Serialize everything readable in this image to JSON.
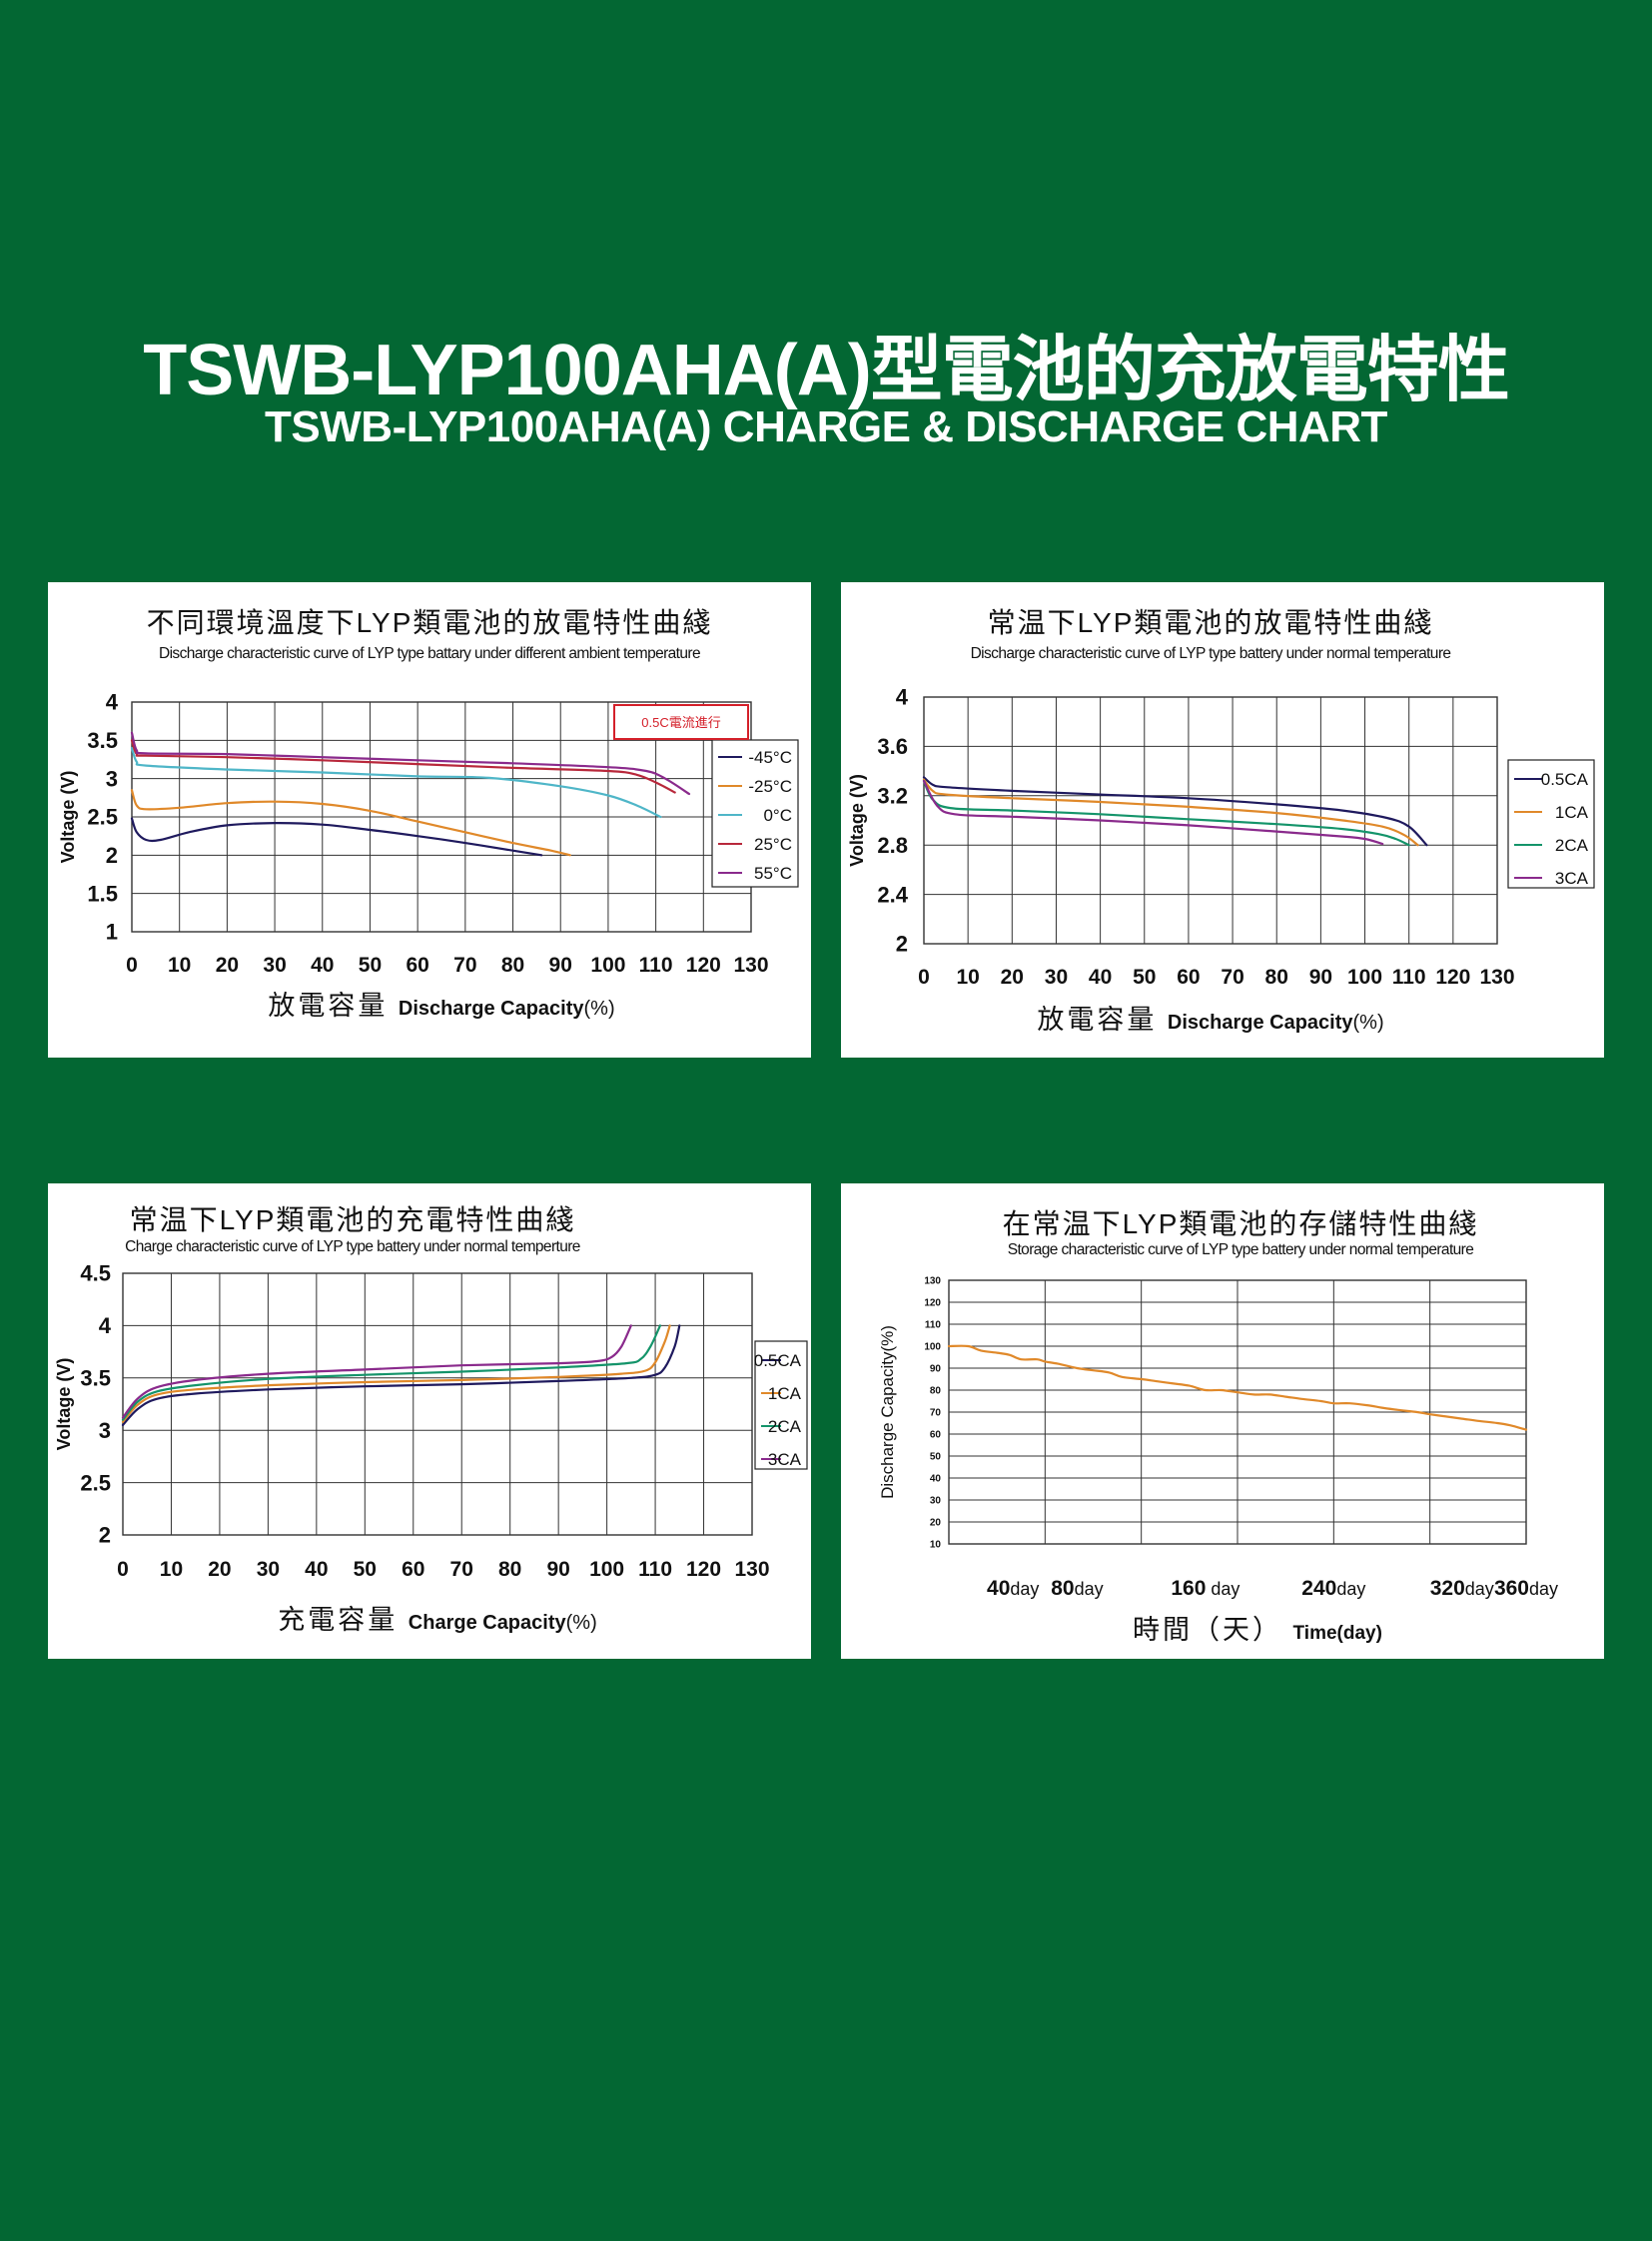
{
  "header": {
    "title": "TSWB-LYP100AHA(A)型電池的充放電特性",
    "subtitle": "TSWB-LYP100AHA(A) CHARGE & DISCHARGE CHART"
  },
  "colors": {
    "background": "#036733",
    "navy": "#1f1a5e",
    "orange": "#e0892a",
    "cyan": "#4fb6c8",
    "green": "#14946a",
    "red": "#b8283b",
    "purple": "#8a2a8c",
    "grid": "#333333",
    "note_red": "#d4202a"
  },
  "chart_data": [
    {
      "id": "temp-discharge",
      "type": "line",
      "title": "不同環境溫度下LYP類電池的放電特性曲綫",
      "subtitle": "Discharge characteristic curve of LYP type battary under different ambient temperature",
      "xlabel_cn": "放電容量",
      "xlabel_en": "Discharge Capacity",
      "xlabel_unit": "(%)",
      "ylabel": "Voltage (V)",
      "xlim": [
        0,
        130
      ],
      "ylim": [
        1,
        4
      ],
      "xticks": [
        "0",
        "10",
        "20",
        "30",
        "40",
        "50",
        "60",
        "70",
        "80",
        "90",
        "100",
        "110",
        "120",
        "130"
      ],
      "yticks": [
        "1",
        "1.5",
        "2",
        "2.5",
        "3",
        "3.5",
        "4"
      ],
      "note": "0.5C電流進行",
      "legend_position": "right",
      "grid": true,
      "series": [
        {
          "name": "-45°C",
          "color": "#1f1a5e",
          "points": [
            [
              0,
              2.48
            ],
            [
              1,
              2.3
            ],
            [
              3,
              2.2
            ],
            [
              6,
              2.2
            ],
            [
              12,
              2.3
            ],
            [
              20,
              2.39
            ],
            [
              30,
              2.42
            ],
            [
              40,
              2.4
            ],
            [
              50,
              2.33
            ],
            [
              60,
              2.25
            ],
            [
              70,
              2.16
            ],
            [
              80,
              2.06
            ],
            [
              86,
              2.0
            ]
          ]
        },
        {
          "name": "-25°C",
          "color": "#e0892a",
          "points": [
            [
              0,
              2.85
            ],
            [
              1,
              2.65
            ],
            [
              3,
              2.6
            ],
            [
              10,
              2.62
            ],
            [
              20,
              2.68
            ],
            [
              30,
              2.7
            ],
            [
              40,
              2.67
            ],
            [
              50,
              2.58
            ],
            [
              60,
              2.44
            ],
            [
              70,
              2.3
            ],
            [
              80,
              2.16
            ],
            [
              88,
              2.06
            ],
            [
              92,
              2.0
            ]
          ]
        },
        {
          "name": "0°C",
          "color": "#4fb6c8",
          "points": [
            [
              0,
              3.4
            ],
            [
              1,
              3.22
            ],
            [
              3,
              3.17
            ],
            [
              20,
              3.12
            ],
            [
              40,
              3.08
            ],
            [
              60,
              3.03
            ],
            [
              75,
              3.01
            ],
            [
              90,
              2.9
            ],
            [
              100,
              2.78
            ],
            [
              106,
              2.65
            ],
            [
              111,
              2.5
            ]
          ]
        },
        {
          "name": "25°C",
          "color": "#b8283b",
          "points": [
            [
              0,
              3.5
            ],
            [
              1,
              3.32
            ],
            [
              3,
              3.3
            ],
            [
              20,
              3.28
            ],
            [
              40,
              3.24
            ],
            [
              60,
              3.19
            ],
            [
              80,
              3.14
            ],
            [
              100,
              3.1
            ],
            [
              106,
              3.05
            ],
            [
              110,
              2.95
            ],
            [
              114,
              2.82
            ]
          ]
        },
        {
          "name": "55°C",
          "color": "#8a2a8c",
          "points": [
            [
              0,
              3.6
            ],
            [
              1,
              3.37
            ],
            [
              3,
              3.33
            ],
            [
              20,
              3.32
            ],
            [
              40,
              3.28
            ],
            [
              60,
              3.24
            ],
            [
              80,
              3.2
            ],
            [
              100,
              3.15
            ],
            [
              108,
              3.1
            ],
            [
              112,
              3.0
            ],
            [
              117,
              2.8
            ]
          ]
        }
      ]
    },
    {
      "id": "rate-discharge",
      "type": "line",
      "title": "常温下LYP類電池的放電特性曲綫",
      "subtitle": "Discharge characteristic curve of LYP type battery under normal temperature",
      "xlabel_cn": "放電容量",
      "xlabel_en": "Discharge Capacity",
      "xlabel_unit": "(%)",
      "ylabel": "Voltage (V)",
      "xlim": [
        0,
        130
      ],
      "ylim": [
        2,
        4
      ],
      "xticks": [
        "0",
        "10",
        "20",
        "30",
        "40",
        "50",
        "60",
        "70",
        "80",
        "90",
        "100",
        "110",
        "120",
        "130"
      ],
      "yticks": [
        "2",
        "2.4",
        "2.8",
        "3.2",
        "3.6",
        "4"
      ],
      "legend_position": "right",
      "grid": true,
      "series": [
        {
          "name": "0.5CA",
          "color": "#1f1a5e",
          "points": [
            [
              0,
              3.35
            ],
            [
              2,
              3.29
            ],
            [
              5,
              3.27
            ],
            [
              20,
              3.24
            ],
            [
              40,
              3.21
            ],
            [
              60,
              3.18
            ],
            [
              80,
              3.13
            ],
            [
              95,
              3.08
            ],
            [
              105,
              3.02
            ],
            [
              110,
              2.95
            ],
            [
              114,
              2.8
            ]
          ]
        },
        {
          "name": "1CA",
          "color": "#e0892a",
          "points": [
            [
              0,
              3.33
            ],
            [
              2,
              3.24
            ],
            [
              5,
              3.21
            ],
            [
              20,
              3.18
            ],
            [
              40,
              3.15
            ],
            [
              60,
              3.11
            ],
            [
              80,
              3.06
            ],
            [
              95,
              3.0
            ],
            [
              104,
              2.95
            ],
            [
              109,
              2.88
            ],
            [
              112,
              2.8
            ]
          ]
        },
        {
          "name": "2CA",
          "color": "#14946a",
          "points": [
            [
              0,
              3.32
            ],
            [
              2,
              3.17
            ],
            [
              6,
              3.1
            ],
            [
              20,
              3.08
            ],
            [
              40,
              3.05
            ],
            [
              60,
              3.01
            ],
            [
              80,
              2.97
            ],
            [
              95,
              2.93
            ],
            [
              103,
              2.89
            ],
            [
              107,
              2.85
            ],
            [
              110,
              2.8
            ]
          ]
        },
        {
          "name": "3CA",
          "color": "#8a2a8c",
          "points": [
            [
              0,
              3.32
            ],
            [
              3,
              3.12
            ],
            [
              7,
              3.05
            ],
            [
              20,
              3.03
            ],
            [
              40,
              3.0
            ],
            [
              60,
              2.96
            ],
            [
              80,
              2.91
            ],
            [
              95,
              2.87
            ],
            [
              100,
              2.85
            ],
            [
              104,
              2.81
            ]
          ]
        }
      ]
    },
    {
      "id": "rate-charge",
      "type": "line",
      "title": "常温下LYP類電池的充電特性曲綫",
      "subtitle": "Charge characteristic curve of LYP type battery under normal temperture",
      "xlabel_cn": "充電容量",
      "xlabel_en": "Charge Capacity",
      "xlabel_unit": "(%)",
      "ylabel": "Voltage (V)",
      "xlim": [
        0,
        130
      ],
      "ylim": [
        2,
        4.5
      ],
      "xticks": [
        "0",
        "10",
        "20",
        "30",
        "40",
        "50",
        "60",
        "70",
        "80",
        "90",
        "100",
        "110",
        "120",
        "130"
      ],
      "yticks": [
        "2",
        "2.5",
        "3",
        "3.5",
        "4",
        "4.5"
      ],
      "legend_position": "right",
      "grid": true,
      "series": [
        {
          "name": "0.5CA",
          "color": "#1f1a5e",
          "points": [
            [
              0,
              3.05
            ],
            [
              3,
              3.2
            ],
            [
              7,
              3.3
            ],
            [
              15,
              3.35
            ],
            [
              30,
              3.39
            ],
            [
              50,
              3.42
            ],
            [
              70,
              3.44
            ],
            [
              90,
              3.47
            ],
            [
              105,
              3.5
            ],
            [
              110,
              3.53
            ],
            [
              112,
              3.6
            ],
            [
              114,
              3.8
            ],
            [
              115,
              4.0
            ]
          ]
        },
        {
          "name": "1CA",
          "color": "#e0892a",
          "points": [
            [
              0,
              3.08
            ],
            [
              3,
              3.24
            ],
            [
              7,
              3.34
            ],
            [
              15,
              3.39
            ],
            [
              30,
              3.43
            ],
            [
              50,
              3.46
            ],
            [
              70,
              3.48
            ],
            [
              90,
              3.51
            ],
            [
              103,
              3.54
            ],
            [
              108,
              3.57
            ],
            [
              110,
              3.65
            ],
            [
              112,
              3.85
            ],
            [
              113,
              4.0
            ]
          ]
        },
        {
          "name": "2CA",
          "color": "#14946a",
          "points": [
            [
              0,
              3.1
            ],
            [
              3,
              3.27
            ],
            [
              7,
              3.37
            ],
            [
              15,
              3.43
            ],
            [
              30,
              3.49
            ],
            [
              50,
              3.53
            ],
            [
              70,
              3.56
            ],
            [
              90,
              3.6
            ],
            [
              104,
              3.64
            ],
            [
              107,
              3.68
            ],
            [
              109,
              3.8
            ],
            [
              111,
              4.0
            ]
          ]
        },
        {
          "name": "3CA",
          "color": "#8a2a8c",
          "points": [
            [
              0,
              3.12
            ],
            [
              3,
              3.3
            ],
            [
              7,
              3.41
            ],
            [
              15,
              3.48
            ],
            [
              30,
              3.54
            ],
            [
              50,
              3.58
            ],
            [
              70,
              3.62
            ],
            [
              90,
              3.64
            ],
            [
              98,
              3.66
            ],
            [
              101,
              3.7
            ],
            [
              103,
              3.8
            ],
            [
              105,
              4.0
            ]
          ]
        }
      ]
    },
    {
      "id": "storage",
      "type": "line",
      "title": "在常温下LYP類電池的存儲特性曲綫",
      "subtitle": "Storage characteristic curve of LYP type battery under normal temperature",
      "xlabel_cn": "時間（天）",
      "xlabel_en": "Time(day)",
      "ylabel": "Discharge Capacity(%)",
      "xlim": [
        0,
        360
      ],
      "ylim": [
        10,
        130
      ],
      "xtick_values": [
        40,
        80,
        160,
        240,
        320,
        360
      ],
      "xtick_units": [
        "day",
        "day",
        "day",
        "day",
        "day",
        "day"
      ],
      "yticks": [
        "10",
        "20",
        "30",
        "40",
        "50",
        "60",
        "70",
        "80",
        "90",
        "100",
        "110",
        "120",
        "130"
      ],
      "grid": true,
      "series": [
        {
          "name": "",
          "color": "#e0892a",
          "points": [
            [
              0,
              100
            ],
            [
              12,
              100
            ],
            [
              20,
              98
            ],
            [
              30,
              97
            ],
            [
              38,
              96
            ],
            [
              45,
              94
            ],
            [
              55,
              94
            ],
            [
              60,
              93
            ],
            [
              68,
              92
            ],
            [
              80,
              90
            ],
            [
              90,
              89
            ],
            [
              100,
              88
            ],
            [
              108,
              86
            ],
            [
              120,
              85
            ],
            [
              130,
              84
            ],
            [
              140,
              83
            ],
            [
              150,
              82
            ],
            [
              160,
              80
            ],
            [
              170,
              80
            ],
            [
              180,
              79
            ],
            [
              190,
              78
            ],
            [
              200,
              78
            ],
            [
              210,
              77
            ],
            [
              220,
              76
            ],
            [
              232,
              75
            ],
            [
              240,
              74
            ],
            [
              250,
              74
            ],
            [
              262,
              73
            ],
            [
              270,
              72
            ],
            [
              280,
              71
            ],
            [
              292,
              70
            ],
            [
              300,
              69
            ],
            [
              310,
              68
            ],
            [
              320,
              67
            ],
            [
              330,
              66
            ],
            [
              342,
              65
            ],
            [
              350,
              64
            ],
            [
              360,
              62
            ]
          ]
        }
      ]
    }
  ]
}
